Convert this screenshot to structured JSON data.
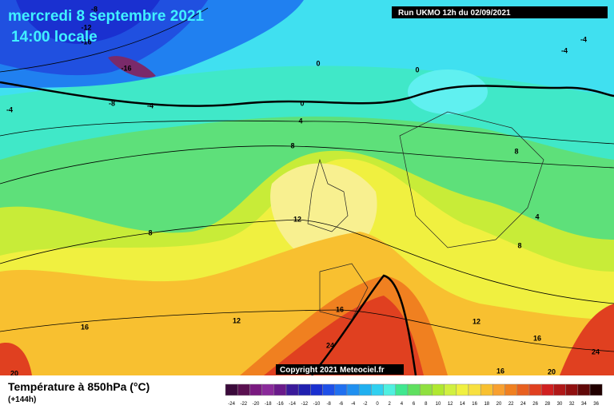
{
  "header": {
    "date": "mercredi 8 septembre 2021",
    "time": "14:00 locale",
    "run": "Run UKMO 12h du 02/09/2021"
  },
  "map": {
    "contour_labels": [
      -8,
      -12,
      -16,
      -16,
      -4,
      -8,
      -4,
      0,
      0,
      0,
      4,
      8,
      8,
      12,
      12,
      16,
      16,
      24,
      12,
      16,
      16,
      20,
      24,
      20,
      -4,
      -4,
      8,
      4,
      8
    ],
    "copyright": "Copyright 2021 Meteociel.fr"
  },
  "footer": {
    "title": "Température à 850hPa (°C)",
    "lead": "(+144h)"
  },
  "legend": {
    "labels": [
      -24,
      -22,
      -20,
      -18,
      -16,
      -14,
      -12,
      -10,
      -8,
      -6,
      -4,
      -2,
      0,
      2,
      4,
      6,
      8,
      10,
      12,
      14,
      16,
      18,
      20,
      22,
      24,
      26,
      28,
      30,
      32,
      34,
      36
    ],
    "colors": [
      "#3a0a3a",
      "#5a1050",
      "#7a1a80",
      "#8a2a9a",
      "#6a1a8a",
      "#3a1a9a",
      "#2020b0",
      "#1a30d0",
      "#1e50e8",
      "#2070f0",
      "#2090f0",
      "#20b0f0",
      "#30d0f0",
      "#50f0e0",
      "#40e890",
      "#60e060",
      "#90e040",
      "#b0e830",
      "#d0f040",
      "#f0f040",
      "#f8e040",
      "#f8c030",
      "#f8a030",
      "#f08020",
      "#e86020",
      "#e04020",
      "#d02020",
      "#b01818",
      "#901010",
      "#600808",
      "#200000"
    ]
  }
}
